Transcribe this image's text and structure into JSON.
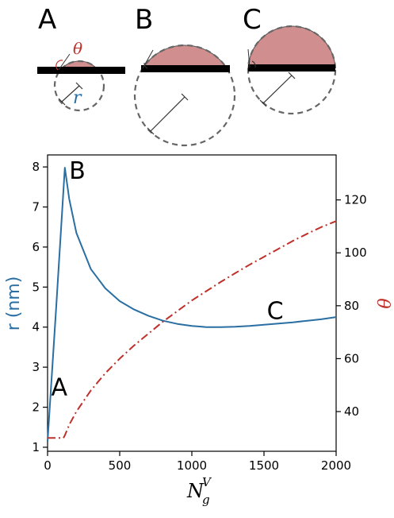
{
  "schematics": {
    "panels": [
      {
        "letter": "A",
        "theta_label": "θ",
        "r_label": "r"
      },
      {
        "letter": "B"
      },
      {
        "letter": "C"
      }
    ]
  },
  "chart_data": {
    "type": "line",
    "x_axis": {
      "label_main": "N",
      "label_sub": "g",
      "label_sup": "V",
      "range": [
        0,
        2000
      ],
      "ticks": [
        0,
        500,
        1000,
        1500,
        2000
      ]
    },
    "y_left": {
      "label": "r (nm)",
      "range": [
        0.9,
        8.3
      ],
      "ticks": [
        1,
        2,
        3,
        4,
        5,
        6,
        7,
        8
      ],
      "color": "#2a6fa3"
    },
    "y_right": {
      "label": "θ",
      "range": [
        25,
        137
      ],
      "ticks": [
        40,
        60,
        80,
        100,
        120
      ],
      "color": "#c0302a"
    },
    "series": [
      {
        "axis": "left",
        "style": "solid",
        "color": "#2a6fa3",
        "x": [
          0,
          60,
          120,
          150,
          200,
          300,
          400,
          500,
          600,
          700,
          800,
          900,
          1000,
          1100,
          1200,
          1300,
          1400,
          1500,
          1600,
          1700,
          1800,
          1900,
          2000
        ],
        "y": [
          1.15,
          4.5,
          7.98,
          7.2,
          6.35,
          5.45,
          4.97,
          4.65,
          4.44,
          4.28,
          4.16,
          4.08,
          4.03,
          4.0,
          4.0,
          4.01,
          4.03,
          4.06,
          4.09,
          4.12,
          4.16,
          4.2,
          4.25
        ]
      },
      {
        "axis": "right",
        "style": "dashdot",
        "color": "#c0302a",
        "x": [
          0,
          110,
          120,
          150,
          200,
          300,
          400,
          500,
          600,
          700,
          800,
          900,
          1000,
          1100,
          1200,
          1300,
          1400,
          1500,
          1600,
          1700,
          1800,
          1900,
          2000
        ],
        "y": [
          30,
          30,
          31,
          35,
          40,
          48,
          54.5,
          60,
          65,
          69.5,
          74,
          78,
          82,
          85.5,
          89,
          92.3,
          95.5,
          98.5,
          101.5,
          104.5,
          107.2,
          109.8,
          112
        ]
      }
    ],
    "annotations": [
      {
        "text": "A",
        "x": 25,
        "y": 2.3
      },
      {
        "text": "B",
        "x": 150,
        "y": 7.7
      },
      {
        "text": "C",
        "x": 1520,
        "y": 4.2
      }
    ]
  }
}
